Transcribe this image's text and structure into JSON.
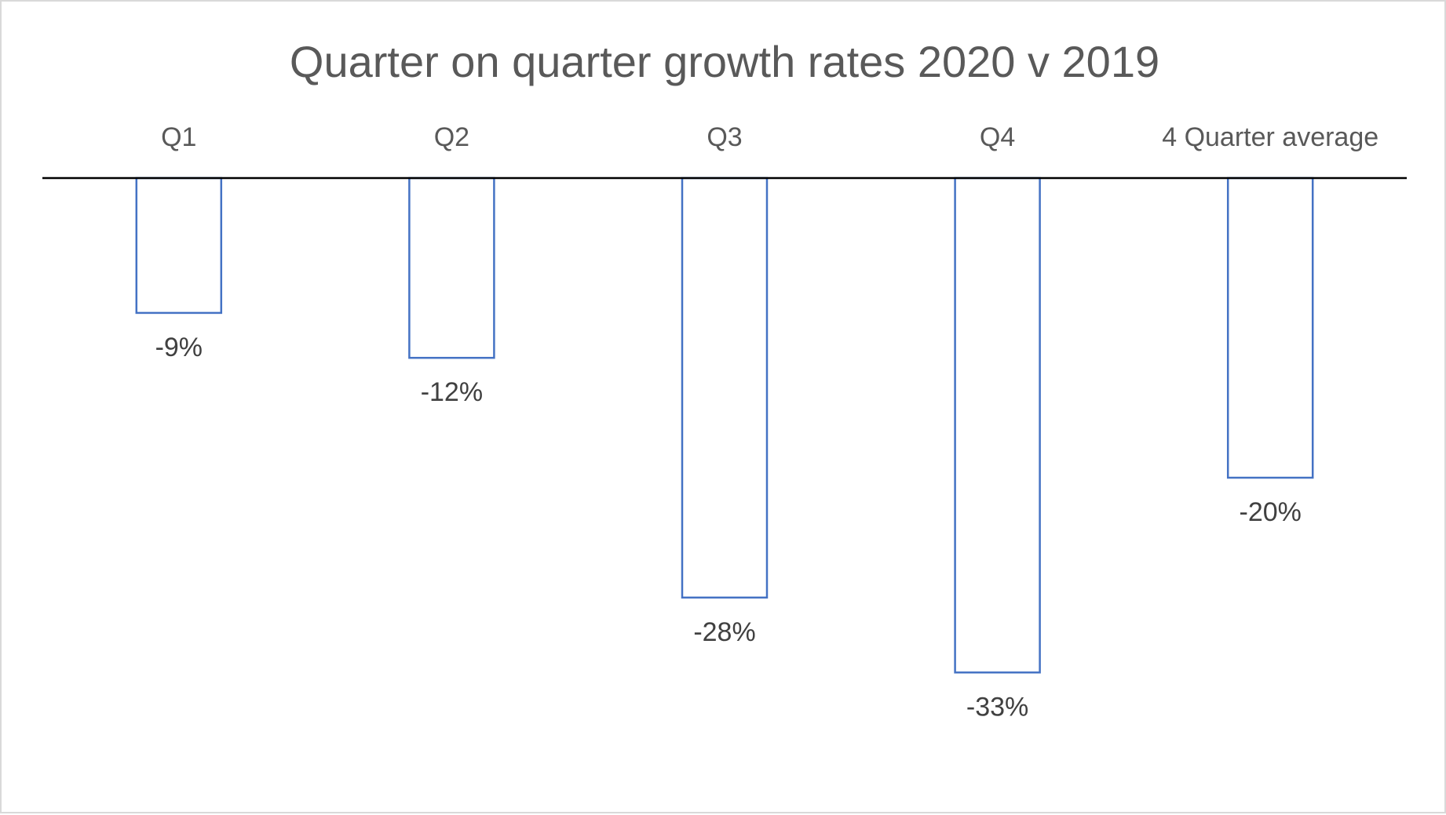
{
  "chart_data": {
    "type": "bar",
    "title": "Quarter on quarter growth rates 2020 v 2019",
    "xlabel": "",
    "ylabel": "",
    "categories": [
      "Q1",
      "Q2",
      "Q3",
      "Q4",
      "4 Quarter average"
    ],
    "values": [
      -9,
      -12,
      -28,
      -33,
      -20
    ],
    "data_labels": [
      "-9%",
      "-12%",
      "-28%",
      "-33%",
      "-20%"
    ],
    "value_unit": "%",
    "ylim": [
      -40,
      0
    ],
    "category_axis_position": "top",
    "grid": false,
    "legend": "none",
    "bar_style": "outline",
    "colors": {
      "bar_outline": "#4472c4",
      "bar_fill": "#ffffff",
      "axis": "#000000",
      "title_text": "#595959",
      "label_text": "#404040",
      "border": "#d9d9d9"
    }
  }
}
